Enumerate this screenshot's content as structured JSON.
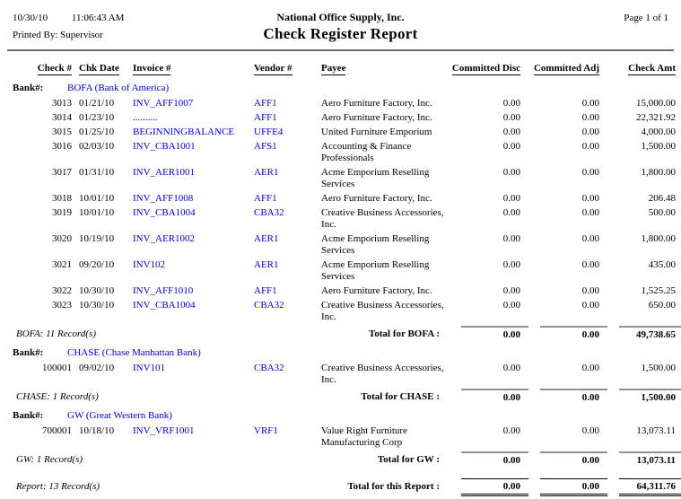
{
  "header": {
    "date": "10/30/10",
    "time": "11:06:43 AM",
    "company": "National Office Supply, Inc.",
    "page": "Page 1 of 1",
    "printed_by": "Printed By: Supervisor",
    "title": "Check Register Report"
  },
  "colors": {
    "link_blue": "#0000cc",
    "rule_gray": "#909090"
  },
  "table": {
    "bank_label": "Bank#:",
    "columns": {
      "check": "Check #",
      "date": "Chk Date",
      "invoice": "Invoice #",
      "vendor": "Vendor #",
      "payee": "Payee",
      "disc": "Committed Disc",
      "adj": "Committed Adj",
      "amt": "Check Amt"
    },
    "sections": [
      {
        "bank": "BOFA (Bank of America)",
        "rows": [
          {
            "check": "3013",
            "date": "01/21/10",
            "invoice": "INV_AFF1007",
            "vendor": "AFF1",
            "payee": "Aero Furniture Factory, Inc.",
            "disc": "0.00",
            "adj": "0.00",
            "amt": "15,000.00"
          },
          {
            "check": "3014",
            "date": "01/23/10",
            "invoice": "..........",
            "vendor": "AFF1",
            "payee": "Aero Furniture Factory, Inc.",
            "disc": "0.00",
            "adj": "0.00",
            "amt": "22,321.92"
          },
          {
            "check": "3015",
            "date": "01/25/10",
            "invoice": "BEGINNINGBALANCE",
            "vendor": "UFFE4",
            "payee": "United Furniture Emporium",
            "disc": "0.00",
            "adj": "0.00",
            "amt": "4,000.00"
          },
          {
            "check": "3016",
            "date": "02/03/10",
            "invoice": "INV_CBA1001",
            "vendor": "AFS1",
            "payee": "Accounting & Finance Professionals",
            "disc": "0.00",
            "adj": "0.00",
            "amt": "1,500.00"
          },
          {
            "check": "3017",
            "date": "01/31/10",
            "invoice": "INV_AER1001",
            "vendor": "AER1",
            "payee": "Acme Emporium Reselling Services",
            "disc": "0.00",
            "adj": "0.00",
            "amt": "1,800.00"
          },
          {
            "check": "3018",
            "date": "10/01/10",
            "invoice": "INV_AFF1008",
            "vendor": "AFF1",
            "payee": "Aero Furniture Factory, Inc.",
            "disc": "0.00",
            "adj": "0.00",
            "amt": "206.48"
          },
          {
            "check": "3019",
            "date": "10/01/10",
            "invoice": "INV_CBA1004",
            "vendor": "CBA32",
            "payee": "Creative Business Accessories, Inc.",
            "disc": "0.00",
            "adj": "0.00",
            "amt": "500.00"
          },
          {
            "check": "3020",
            "date": "10/19/10",
            "invoice": "INV_AER1002",
            "vendor": "AER1",
            "payee": "Acme Emporium Reselling Services",
            "disc": "0.00",
            "adj": "0.00",
            "amt": "1,800.00"
          },
          {
            "check": "3021",
            "date": "09/20/10",
            "invoice": "INV102",
            "vendor": "AER1",
            "payee": "Acme Emporium Reselling Services",
            "disc": "0.00",
            "adj": "0.00",
            "amt": "435.00"
          },
          {
            "check": "3022",
            "date": "10/30/10",
            "invoice": "INV_AFF1010",
            "vendor": "AFF1",
            "payee": "Aero Furniture Factory, Inc.",
            "disc": "0.00",
            "adj": "0.00",
            "amt": "1,525.25"
          },
          {
            "check": "3023",
            "date": "10/30/10",
            "invoice": "INV_CBA1004",
            "vendor": "CBA32",
            "payee": "Creative Business Accessories, Inc.",
            "disc": "0.00",
            "adj": "0.00",
            "amt": "650.00"
          }
        ],
        "record_count": "BOFA: 11 Record(s)",
        "total_label": "Total for BOFA :",
        "total": {
          "disc": "0.00",
          "adj": "0.00",
          "amt": "49,738.65"
        }
      },
      {
        "bank": "CHASE (Chase Manhattan Bank)",
        "rows": [
          {
            "check": "100001",
            "date": "09/02/10",
            "invoice": "INV101",
            "vendor": "CBA32",
            "payee": "Creative Business Accessories, Inc.",
            "disc": "0.00",
            "adj": "0.00",
            "amt": "1,500.00"
          }
        ],
        "record_count": "CHASE: 1 Record(s)",
        "total_label": "Total for CHASE :",
        "total": {
          "disc": "0.00",
          "adj": "0.00",
          "amt": "1,500.00"
        }
      },
      {
        "bank": "GW (Great Western Bank)",
        "rows": [
          {
            "check": "700001",
            "date": "10/18/10",
            "invoice": "INV_VRF1001",
            "vendor": "VRF1",
            "payee": "Value Right Furniture Manufacturing Corp",
            "disc": "0.00",
            "adj": "0.00",
            "amt": "13,073.11"
          }
        ],
        "record_count": "GW: 1 Record(s)",
        "total_label": "Total for GW :",
        "total": {
          "disc": "0.00",
          "adj": "0.00",
          "amt": "13,073.11"
        }
      }
    ],
    "report_total": {
      "record_count": "Report: 13 Record(s)",
      "label": "Total for this Report :",
      "disc": "0.00",
      "adj": "0.00",
      "amt": "64,311.76"
    }
  }
}
